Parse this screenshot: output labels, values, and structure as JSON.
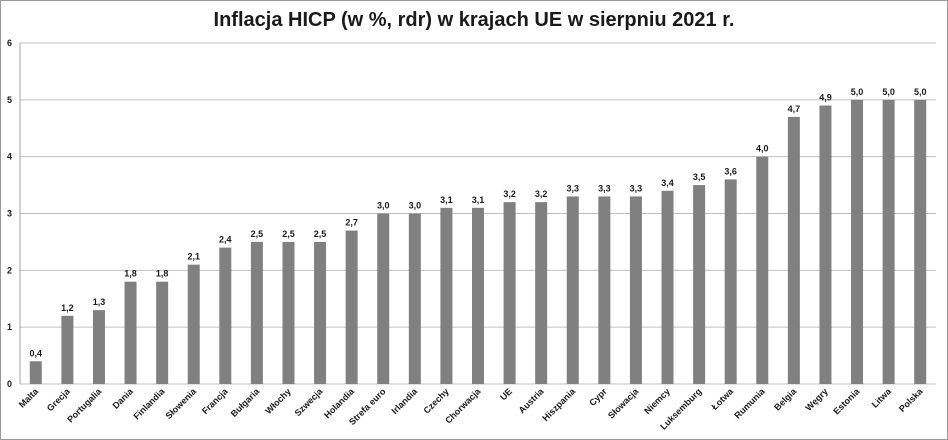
{
  "chart_data": {
    "type": "bar",
    "title": "Inflacja HICP (w %, rdr) w krajach UE w sierpniu 2021 r.",
    "categories": [
      "Malta",
      "Grecja",
      "Portugalia",
      "Dania",
      "Finlandia",
      "Słowenia",
      "Francja",
      "Bułgaria",
      "Włochy",
      "Szwecja",
      "Holandia",
      "Strefa euro",
      "Irlandia",
      "Czechy",
      "Chorwacja",
      "UE",
      "Austria",
      "Hiszpania",
      "Cypr",
      "Słowacja",
      "Niemcy",
      "Luksemburg",
      "Łotwa",
      "Rumunia",
      "Belgia",
      "Węgry",
      "Estonia",
      "Litwa",
      "Polska"
    ],
    "values": [
      0.4,
      1.2,
      1.3,
      1.8,
      1.8,
      2.1,
      2.4,
      2.5,
      2.5,
      2.5,
      2.7,
      3.0,
      3.0,
      3.1,
      3.1,
      3.2,
      3.2,
      3.3,
      3.3,
      3.3,
      3.4,
      3.5,
      3.6,
      4.0,
      4.7,
      4.9,
      5.0,
      5.0,
      5.0
    ],
    "data_labels": [
      "0,4",
      "1,2",
      "1,3",
      "1,8",
      "1,8",
      "2,1",
      "2,4",
      "2,5",
      "2,5",
      "2,5",
      "2,7",
      "3,0",
      "3,0",
      "3,1",
      "3,1",
      "3,2",
      "3,2",
      "3,3",
      "3,3",
      "3,3",
      "3,4",
      "3,5",
      "3,6",
      "4,0",
      "4,7",
      "4,9",
      "5,0",
      "5,0",
      "5,0"
    ],
    "y_ticks": [
      "0",
      "1",
      "2",
      "3",
      "4",
      "5",
      "6"
    ],
    "ylim": [
      0,
      6
    ],
    "xlabel": "",
    "ylabel": "",
    "grid": true,
    "legend": "none",
    "bar_color": "#808080",
    "grid_color": "#c0c0c0"
  }
}
